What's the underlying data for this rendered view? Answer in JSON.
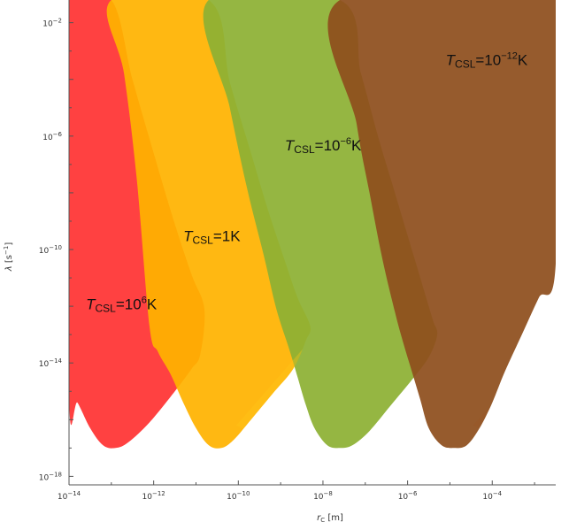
{
  "chart_data": {
    "type": "area",
    "title": "",
    "xlabel": {
      "symbol": "r",
      "subscript": "C",
      "unit": "[m]"
    },
    "ylabel": {
      "symbol": "λ",
      "unit": "[s",
      "unit_exp": "−1",
      "unit_close": "]"
    },
    "x_scale": "log",
    "y_scale": "log",
    "xlim_exp": [
      -14,
      -2.5
    ],
    "ylim_exp": [
      -18.3,
      -1.2
    ],
    "x_ticks": [
      {
        "base": "10",
        "exp": "−14",
        "value": -14
      },
      {
        "base": "10",
        "exp": "−12",
        "value": -12
      },
      {
        "base": "10",
        "exp": "−10",
        "value": -10
      },
      {
        "base": "10",
        "exp": "−8",
        "value": -8
      },
      {
        "base": "10",
        "exp": "−6",
        "value": -6
      },
      {
        "base": "10",
        "exp": "−4",
        "value": -4
      }
    ],
    "y_ticks": [
      {
        "base": "10",
        "exp": "−2",
        "value": -2
      },
      {
        "base": "10",
        "exp": "−6",
        "value": -6
      },
      {
        "base": "10",
        "exp": "−10",
        "value": -10
      },
      {
        "base": "10",
        "exp": "−14",
        "value": -14
      },
      {
        "base": "10",
        "exp": "−18",
        "value": -18
      }
    ],
    "grid": false,
    "legend": "none",
    "regions": [
      {
        "label_main": "T",
        "label_sub": "CSL",
        "label_eq": "=10",
        "label_sup": "6",
        "label_unit": "K",
        "color": "#ff3333",
        "overlap_color": "#ffb733",
        "label_at": [
          -13.6,
          -12.1
        ],
        "boundary": [
          [
            -14,
            -1.2
          ],
          [
            -13.0,
            -1.2
          ],
          [
            -12.5,
            -4.0
          ],
          [
            -12.0,
            -6.6
          ],
          [
            -11.5,
            -9.1
          ],
          [
            -11.1,
            -10.9
          ],
          [
            -10.8,
            -12.1
          ],
          [
            -10.9,
            -13.7
          ],
          [
            -11.1,
            -14.2
          ],
          [
            -11.5,
            -15.0
          ],
          [
            -12.1,
            -16.1
          ],
          [
            -12.6,
            -16.8
          ],
          [
            -12.9,
            -17.0
          ],
          [
            -13.2,
            -16.9
          ],
          [
            -13.5,
            -16.3
          ],
          [
            -13.8,
            -15.4
          ],
          [
            -14,
            -15.1
          ]
        ]
      },
      {
        "label_main": "T",
        "label_sub": "CSL",
        "label_eq": "=1",
        "label_sup": "",
        "label_unit": "K",
        "color": "#ffb300",
        "overlap_color": "#ffc61a",
        "label_at": [
          -11.3,
          -9.7
        ],
        "boundary": [
          [
            -13.0,
            -1.2
          ],
          [
            -10.7,
            -1.2
          ],
          [
            -10.2,
            -4.1
          ],
          [
            -9.7,
            -6.6
          ],
          [
            -9.3,
            -8.6
          ],
          [
            -8.9,
            -10.4
          ],
          [
            -8.6,
            -11.7
          ],
          [
            -8.3,
            -12.7
          ],
          [
            -8.4,
            -13.2
          ],
          [
            -8.7,
            -14.2
          ],
          [
            -9.2,
            -15.1
          ],
          [
            -9.7,
            -16.0
          ],
          [
            -10.1,
            -16.7
          ],
          [
            -10.4,
            -17.0
          ],
          [
            -10.7,
            -16.9
          ],
          [
            -11.0,
            -16.3
          ],
          [
            -11.3,
            -15.4
          ],
          [
            -11.6,
            -14.4
          ],
          [
            -11.9,
            -13.6
          ],
          [
            -12.1,
            -12.7
          ],
          [
            -12.4,
            -7.5
          ],
          [
            -12.7,
            -3.8
          ]
        ]
      },
      {
        "label_main": "T",
        "label_sub": "CSL",
        "label_eq": "=10",
        "label_sup": "−6",
        "label_unit": "K",
        "color": "#8db034",
        "overlap_color": "#8db034",
        "label_at": [
          -8.9,
          -6.5
        ],
        "boundary": [
          [
            -10.7,
            -1.2
          ],
          [
            -7.6,
            -1.2
          ],
          [
            -7.1,
            -3.8
          ],
          [
            -6.7,
            -6.0
          ],
          [
            -6.4,
            -7.5
          ],
          [
            -6.1,
            -9.0
          ],
          [
            -5.8,
            -10.5
          ],
          [
            -5.6,
            -11.5
          ],
          [
            -5.4,
            -12.5
          ],
          [
            -5.3,
            -13.0
          ],
          [
            -5.5,
            -13.8
          ],
          [
            -5.9,
            -14.6
          ],
          [
            -6.4,
            -15.5
          ],
          [
            -6.9,
            -16.4
          ],
          [
            -7.3,
            -16.9
          ],
          [
            -7.6,
            -17.0
          ],
          [
            -7.9,
            -16.9
          ],
          [
            -8.2,
            -16.3
          ],
          [
            -8.4,
            -15.5
          ],
          [
            -8.6,
            -14.5
          ],
          [
            -8.8,
            -13.5
          ],
          [
            -9.1,
            -12.1
          ],
          [
            -9.4,
            -10.2
          ],
          [
            -9.8,
            -7.8
          ],
          [
            -10.2,
            -5.0
          ]
        ]
      },
      {
        "label_main": "T",
        "label_sub": "CSL",
        "label_eq": "=10",
        "label_sup": "−12",
        "label_unit": "K",
        "color": "#8e4f1d",
        "overlap_color": "#9a5626",
        "label_at": [
          -5.1,
          -3.5
        ],
        "boundary": [
          [
            -7.6,
            -1.2
          ],
          [
            -2.5,
            -1.2
          ],
          [
            -2.5,
            -10.5
          ],
          [
            -2.9,
            -11.7
          ],
          [
            -3.3,
            -13.0
          ],
          [
            -3.7,
            -14.3
          ],
          [
            -4.0,
            -15.4
          ],
          [
            -4.3,
            -16.3
          ],
          [
            -4.6,
            -16.9
          ],
          [
            -4.9,
            -17.0
          ],
          [
            -5.2,
            -16.9
          ],
          [
            -5.5,
            -16.3
          ],
          [
            -5.7,
            -15.3
          ],
          [
            -5.9,
            -14.3
          ],
          [
            -6.1,
            -13.3
          ],
          [
            -6.3,
            -12.2
          ],
          [
            -6.6,
            -10.3
          ],
          [
            -6.9,
            -8.0
          ],
          [
            -7.2,
            -5.6
          ]
        ]
      }
    ]
  }
}
